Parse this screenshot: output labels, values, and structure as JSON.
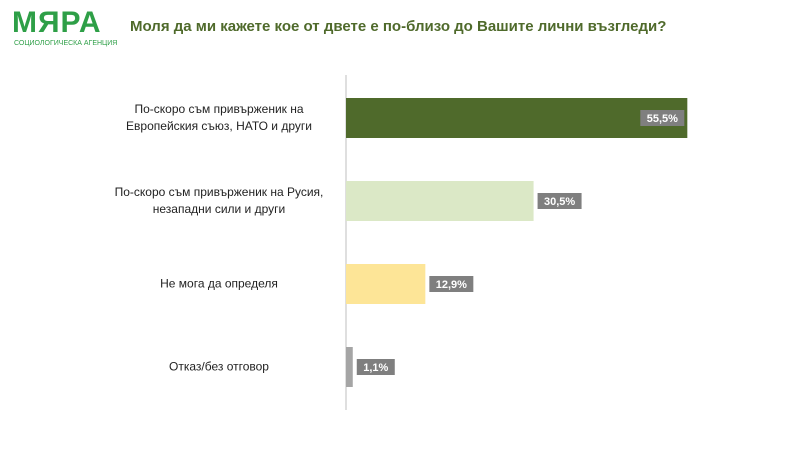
{
  "logo": {
    "name": "МЯРА",
    "tagline": "СОЦИОЛОГИЧЕСКА АГЕНЦИЯ"
  },
  "chart_data": {
    "type": "bar",
    "orientation": "horizontal",
    "title": "Моля да ми кажете кое от двете е по-близо до Вашите лични възгледи?",
    "categories": [
      "По-скоро съм привърженик на Европейския съюз, НАТО и други",
      "По-скоро съм привърженик на Русия, незападни сили и други",
      "Не мога да определя",
      "Отказ/без отговор"
    ],
    "values": [
      55.5,
      30.5,
      12.9,
      1.1
    ],
    "value_labels": [
      "55,5%",
      "30,5%",
      "12,9%",
      "1,1%"
    ],
    "colors": [
      "#4f6a2b",
      "#dbe8c6",
      "#fde597",
      "#a5a5a5"
    ]
  }
}
